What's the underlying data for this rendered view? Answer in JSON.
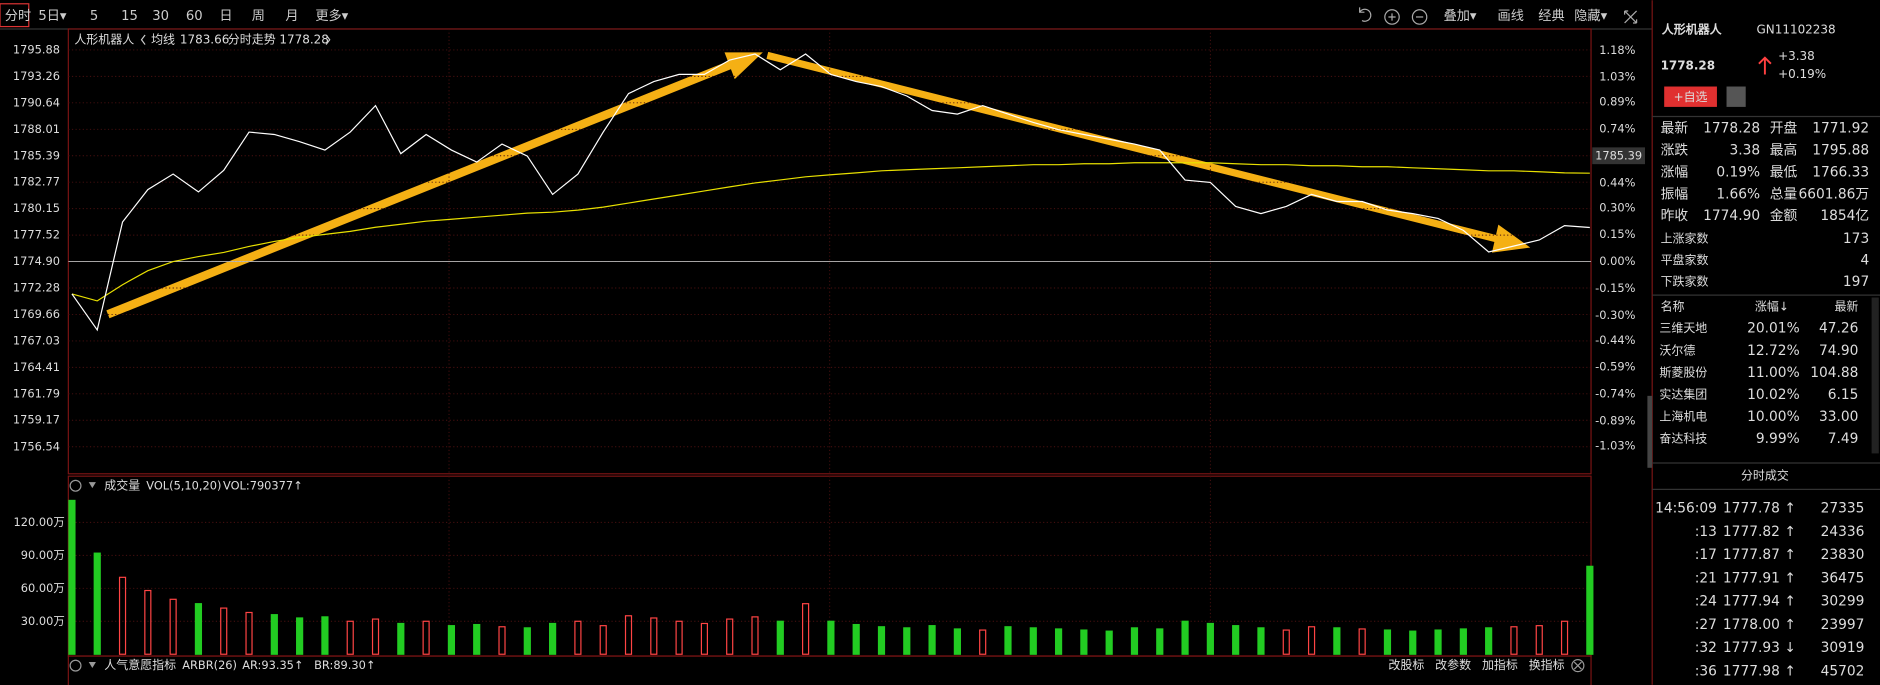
{
  "toolbar": {
    "tabs": [
      "分时",
      "5日▾",
      "5",
      "15",
      "30",
      "60",
      "日",
      "周",
      "月",
      "更多▾"
    ],
    "right": [
      "叠加▾",
      "画线",
      "经典",
      "隐藏▾"
    ]
  },
  "chart_data": [
    {
      "type": "line",
      "title": "人形机器人",
      "grid": true,
      "base": 1774.9,
      "marker": 1785.39,
      "ylim": [
        1753.86,
        1797.96
      ],
      "yticks": [
        1795.88,
        1793.26,
        1790.64,
        1788.01,
        1785.39,
        1782.77,
        1780.15,
        1777.52,
        {
          "value": 1774.9,
          "label": "1774.90"
        },
        1772.28,
        1769.66,
        1767.03,
        1764.41,
        1761.79,
        1759.17,
        1756.54
      ],
      "y2lim": [
        -1.185,
        1.299
      ],
      "y2ticks": [
        {
          "value": 1.18,
          "label": "1.18%"
        },
        {
          "value": 1.03,
          "label": "1.03%"
        },
        {
          "value": 0.89,
          "label": "0.89%"
        },
        {
          "value": 0.74,
          "label": "0.74%"
        },
        {
          "value": 0.59,
          "label": "0.59%"
        },
        {
          "value": 0.44,
          "label": "0.44%"
        },
        {
          "value": 0.3,
          "label": "0.30%"
        },
        {
          "value": 0.15,
          "label": "0.15%"
        },
        {
          "value": 0,
          "label": "0.00%"
        },
        {
          "value": -0.15,
          "label": "-0.15%"
        },
        {
          "value": -0.3,
          "label": "-0.30%"
        },
        {
          "value": -0.44,
          "label": "-0.44%"
        },
        {
          "value": -0.59,
          "label": "-0.59%"
        },
        {
          "value": -0.74,
          "label": "-0.74%"
        },
        {
          "value": -0.89,
          "label": "-0.89%"
        },
        {
          "value": -1.03,
          "label": "-1.03%"
        }
      ],
      "series": [
        {
          "name": "均线",
          "color": "#e8e000",
          "values": [
            1771.69,
            1771.0,
            1772.6,
            1774.0,
            1774.9,
            1775.4,
            1775.8,
            1776.4,
            1776.9,
            1777.3,
            1777.6,
            1777.9,
            1778.3,
            1778.6,
            1778.9,
            1779.1,
            1779.3,
            1779.5,
            1779.7,
            1779.8,
            1780.0,
            1780.3,
            1780.7,
            1781.1,
            1781.5,
            1781.9,
            1782.3,
            1782.7,
            1783.0,
            1783.3,
            1783.5,
            1783.7,
            1783.9,
            1784.0,
            1784.1,
            1784.2,
            1784.3,
            1784.4,
            1784.5,
            1784.5,
            1784.6,
            1784.6,
            1784.7,
            1784.7,
            1784.7,
            1784.7,
            1784.6,
            1784.5,
            1784.5,
            1784.4,
            1784.4,
            1784.3,
            1784.3,
            1784.2,
            1784.1,
            1784.0,
            1783.9,
            1783.9,
            1783.8,
            1783.7,
            1783.66
          ]
        },
        {
          "name": "分时走势",
          "color": "#ffffff",
          "values": [
            1771.69,
            1768.12,
            1778.82,
            1782.03,
            1783.58,
            1781.8,
            1783.94,
            1787.74,
            1787.5,
            1786.79,
            1785.96,
            1787.74,
            1790.36,
            1785.6,
            1787.5,
            1785.96,
            1784.77,
            1786.55,
            1785.36,
            1781.56,
            1783.58,
            1787.74,
            1791.55,
            1792.74,
            1793.45,
            1793.45,
            1794.88,
            1795.47,
            1793.92,
            1795.47,
            1793.45,
            1792.74,
            1792.26,
            1791.31,
            1789.88,
            1789.52,
            1790.36,
            1789.52,
            1788.69,
            1787.98,
            1787.5,
            1787.03,
            1786.55,
            1785.96,
            1782.98,
            1782.75,
            1780.37,
            1779.66,
            1780.37,
            1781.56,
            1780.85,
            1780.85,
            1780.01,
            1779.66,
            1779.18,
            1777.99,
            1775.85,
            1776.45,
            1777.04,
            1778.47,
            1778.28
          ]
        }
      ]
    },
    {
      "type": "bar",
      "title": "成交量",
      "subtitle": "VOL(5,10,20)",
      "annotation": "VOL:790377↑",
      "grid": true,
      "up_color": "#ff4444",
      "down_color": "#22cc22",
      "ylim": [
        0,
        143.5
      ],
      "yticks": [
        {
          "value": 120,
          "label": "120.00万"
        },
        {
          "value": 90,
          "label": "90.00万"
        },
        {
          "value": 60,
          "label": "60.00万"
        },
        {
          "value": 30,
          "label": "30.00万"
        }
      ],
      "values": [
        140,
        92,
        70,
        58,
        50,
        46,
        42,
        38,
        36,
        33,
        34,
        30,
        32,
        28,
        30,
        26,
        27,
        25,
        24,
        28,
        30,
        26,
        35,
        33,
        30,
        28,
        32,
        34,
        30,
        46,
        30,
        27,
        25,
        24,
        26,
        23,
        22,
        25,
        24,
        23,
        22,
        21,
        24,
        23,
        30,
        28,
        26,
        24,
        22,
        25,
        24,
        23,
        22,
        21,
        22,
        23,
        24,
        25,
        26,
        30,
        80
      ]
    }
  ],
  "indicator": {
    "name": "人气意愿指标",
    "params": "ARBR(26)",
    "ar": "AR:93.35↑",
    "br": "BR:89.30↑",
    "buttons": [
      "改股标",
      "改参数",
      "加指标",
      "换指标"
    ]
  },
  "quote": {
    "name": "人形机器人",
    "code": "GN11102238",
    "price": "1778.28",
    "change": "+3.38",
    "pct": "+0.19%",
    "button": "+自选",
    "rows": [
      [
        "最新",
        "1778.28",
        "开盘",
        "1771.92"
      ],
      [
        "涨跌",
        "3.38",
        "最高",
        "1795.88"
      ],
      [
        "涨幅",
        "0.19%",
        "最低",
        "1766.33"
      ],
      [
        "振幅",
        "1.66%",
        "总量",
        "6601.86万"
      ],
      [
        "昨收",
        "1774.90",
        "金额",
        "1854亿"
      ]
    ],
    "counts": [
      [
        "上涨家数",
        "173"
      ],
      [
        "平盘家数",
        "4"
      ],
      [
        "下跌家数",
        "197"
      ]
    ]
  },
  "sector": {
    "header": [
      "名称",
      "涨幅↓",
      "最新"
    ],
    "rows": [
      [
        "三维天地",
        "20.01%",
        "47.26"
      ],
      [
        "沃尔德",
        "12.72%",
        "74.90"
      ],
      [
        "斯菱股份",
        "11.00%",
        "104.88"
      ],
      [
        "实达集团",
        "10.02%",
        "6.15"
      ],
      [
        "上海机电",
        "10.00%",
        "33.00"
      ],
      [
        "奋达科技",
        "9.99%",
        "7.49"
      ]
    ]
  },
  "trades": {
    "title": "分时成交",
    "rows": [
      [
        "14:56:09",
        "1777.78 ↑",
        "27335"
      ],
      [
        ":13",
        "1777.82 ↑",
        "24336"
      ],
      [
        ":17",
        "1777.87 ↑",
        "23830"
      ],
      [
        ":21",
        "1777.91 ↑",
        "36475"
      ],
      [
        ":24",
        "1777.94 ↑",
        "30299"
      ],
      [
        ":27",
        "1778.00 ↑",
        "23997"
      ],
      [
        ":32",
        "1777.93 ↓",
        "30919"
      ],
      [
        ":36",
        "1777.98 ↑",
        "45702"
      ]
    ]
  }
}
